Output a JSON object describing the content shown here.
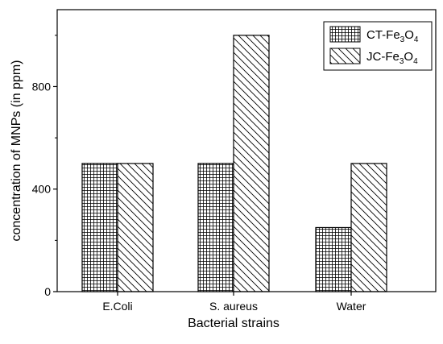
{
  "chart_data": {
    "type": "bar",
    "categories": [
      "E.Coli",
      "S. aureus",
      "Water"
    ],
    "series": [
      {
        "name": "CT-Fe3O4",
        "label_main": "CT-Fe",
        "label_sub1": "3",
        "label_mid": "O",
        "label_sub2": "4",
        "pattern": "grid",
        "values": [
          500,
          500,
          250
        ]
      },
      {
        "name": "JC-Fe3O4",
        "label_main": "JC-Fe",
        "label_sub1": "3",
        "label_mid": "O",
        "label_sub2": "4",
        "pattern": "diagonal",
        "values": [
          500,
          1000,
          500
        ]
      }
    ],
    "xlabel": "Bacterial strains",
    "ylabel": "concentration of MNPs (in ppm)",
    "ylim": [
      0,
      1100
    ],
    "yticks": [
      "0",
      "400",
      "800"
    ],
    "ytick_values": [
      0,
      400,
      800
    ],
    "legend_position": "top-right",
    "grid": false
  }
}
